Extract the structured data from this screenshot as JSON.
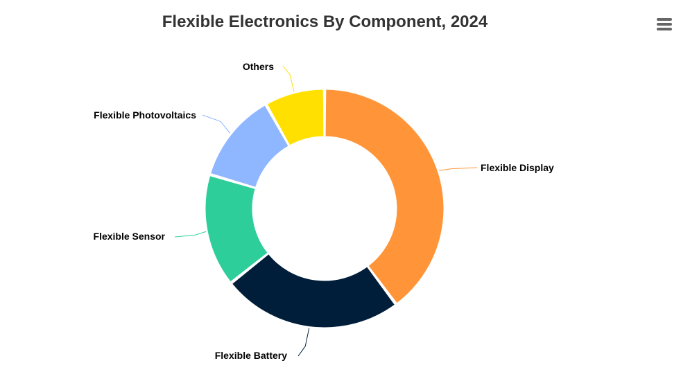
{
  "chart_data": {
    "type": "pie",
    "variant": "donut",
    "title": "Flexible Electronics By Component, 2024",
    "series": [
      {
        "label": "Flexible Display",
        "value": 39,
        "color": "#FF9538"
      },
      {
        "label": "Flexible Battery",
        "value": 24,
        "color": "#001E3A"
      },
      {
        "label": "Flexible Sensor",
        "value": 15,
        "color": "#2ECE9B"
      },
      {
        "label": "Flexible Photovoltaics",
        "value": 12,
        "color": "#8FB7FF"
      },
      {
        "label": "Others",
        "value": 8,
        "color": "#FFE000"
      }
    ],
    "legend": "none",
    "data_labels": "outside with connector lines"
  },
  "toolbar": {
    "menu_icon": "hamburger-menu-icon"
  }
}
